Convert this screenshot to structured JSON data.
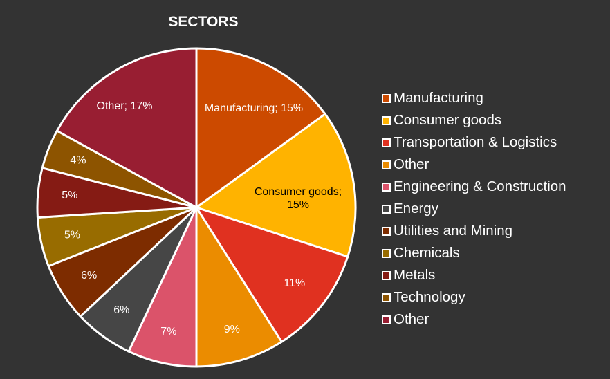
{
  "chart_data": {
    "type": "pie",
    "title": "SECTORS",
    "start_angle": "12 o'clock, clockwise",
    "slices": [
      {
        "label": "Manufacturing",
        "value": 15,
        "color": "#CC4A00",
        "data_label": "Manufacturing; 15%",
        "label_color": "#ffffff"
      },
      {
        "label": "Consumer goods",
        "value": 15,
        "color": "#FFB300",
        "data_label": "Consumer goods; 15%",
        "label_color": "#000000"
      },
      {
        "label": "Transportation & Logistics",
        "value": 11,
        "color": "#E03120",
        "data_label": "11%",
        "label_color": "#ffffff"
      },
      {
        "label": "Other",
        "value": 9,
        "color": "#EB8C00",
        "data_label": "9%",
        "label_color": "#ffffff"
      },
      {
        "label": "Engineering & Construction",
        "value": 7,
        "color": "#DB536A",
        "data_label": "7%",
        "label_color": "#ffffff"
      },
      {
        "label": "Energy",
        "value": 6,
        "color": "#464646",
        "data_label": "6%",
        "label_color": "#ffffff"
      },
      {
        "label": "Utilities and Mining",
        "value": 6,
        "color": "#7D2C00",
        "data_label": "6%",
        "label_color": "#ffffff"
      },
      {
        "label": "Chemicals",
        "value": 5,
        "color": "#986C00",
        "data_label": "5%",
        "label_color": "#ffffff"
      },
      {
        "label": "Metals",
        "value": 5,
        "color": "#851B14",
        "data_label": "5%",
        "label_color": "#ffffff"
      },
      {
        "label": "Technology",
        "value": 4,
        "color": "#8D5400",
        "data_label": "4%",
        "label_color": "#ffffff"
      },
      {
        "label": "Other",
        "value": 17,
        "color": "#981E32",
        "data_label": "Other; 17%",
        "label_color": "#ffffff"
      }
    ],
    "legend_position": "right"
  }
}
